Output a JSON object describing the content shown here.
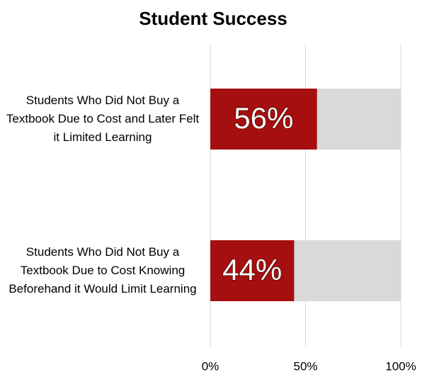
{
  "chart_data": {
    "type": "bar",
    "orientation": "horizontal",
    "title": "Student Success",
    "categories": [
      "Students Who Did Not Buy a Textbook Due to Cost and Later Felt it Limited Learning",
      "Students Who Did Not Buy a Textbook Due to Cost Knowing Beforehand it Would Limit Learning"
    ],
    "values": [
      56,
      44
    ],
    "value_labels": [
      "56%",
      "44%"
    ],
    "color": "#a50f0f",
    "track_color": "#d9d9d9",
    "xlim": [
      0,
      100
    ],
    "xticks": [
      {
        "value": 0,
        "label": "0%"
      },
      {
        "value": 50,
        "label": "50%"
      },
      {
        "value": 100,
        "label": "100%"
      }
    ],
    "grid": true
  }
}
